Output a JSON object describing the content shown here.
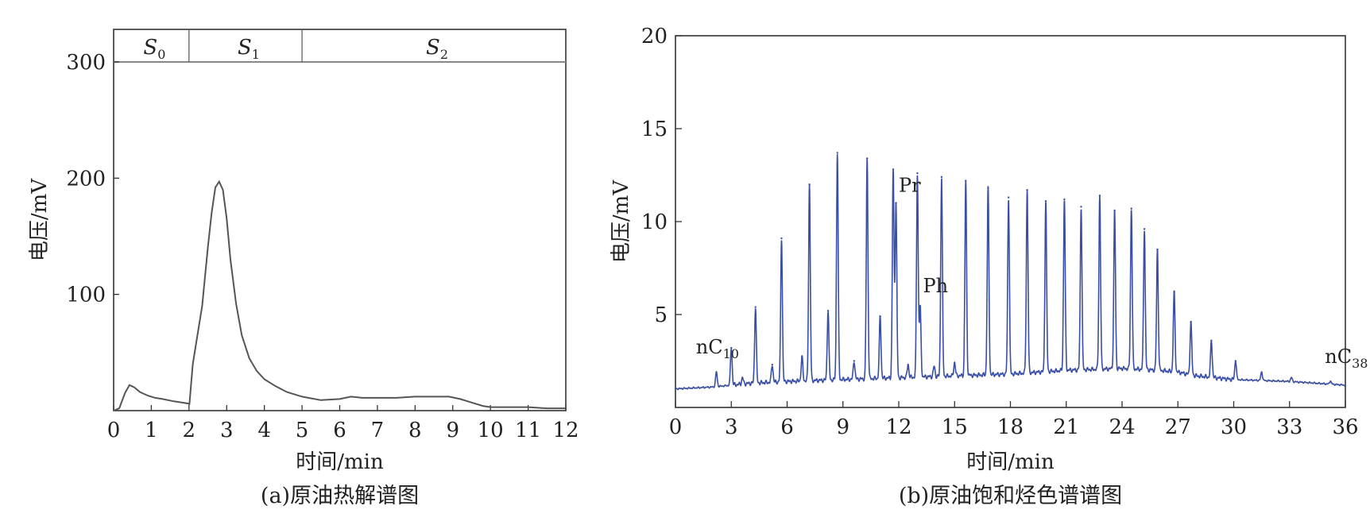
{
  "chart_data": [
    {
      "type": "line",
      "caption": "(a)原油热解谱图",
      "xlabel": "时间/min",
      "ylabel": "电压/mV",
      "xlim": [
        0,
        12
      ],
      "ylim": [
        0,
        328
      ],
      "xticks": [
        0,
        1,
        2,
        3,
        4,
        5,
        6,
        7,
        8,
        9,
        10,
        11,
        12
      ],
      "yticks": [
        100,
        200,
        300
      ],
      "regions": [
        {
          "label": "S",
          "sub": "0",
          "from": 0,
          "to": 2
        },
        {
          "label": "S",
          "sub": "1",
          "from": 2,
          "to": 5
        },
        {
          "label": "S",
          "sub": "2",
          "from": 5,
          "to": 12
        }
      ],
      "region_band": [
        300,
        328
      ],
      "series": [
        {
          "color": "#555555",
          "x": [
            0,
            0.15,
            0.3,
            0.42,
            0.55,
            0.7,
            0.9,
            1.1,
            1.3,
            1.6,
            2.0,
            2.01,
            2.1,
            2.2,
            2.35,
            2.5,
            2.6,
            2.7,
            2.8,
            2.9,
            3.0,
            3.1,
            3.25,
            3.4,
            3.6,
            3.8,
            4.0,
            4.3,
            4.6,
            5.0,
            5.5,
            6.0,
            6.3,
            6.6,
            7.0,
            7.5,
            8.0,
            8.5,
            8.9,
            9.2,
            9.5,
            9.8,
            10.0,
            10.5,
            11.0,
            11.5,
            12.0
          ],
          "y": [
            0,
            2,
            15,
            22,
            20,
            16,
            13,
            11,
            10,
            8,
            6,
            5,
            40,
            60,
            90,
            140,
            170,
            192,
            197,
            190,
            165,
            130,
            92,
            65,
            45,
            34,
            27,
            21,
            16,
            12,
            9,
            10,
            12,
            11,
            11,
            11,
            12,
            12,
            12,
            10,
            7,
            4,
            3,
            3,
            3,
            2,
            2
          ]
        }
      ]
    },
    {
      "type": "line",
      "caption": "(b)原油饱和烃色谱谱图",
      "xlabel": "时间/min",
      "ylabel": "电压/mV",
      "xlim": [
        0,
        36
      ],
      "ylim": [
        0,
        20
      ],
      "xticks": [
        0,
        3,
        6,
        9,
        12,
        15,
        18,
        21,
        24,
        27,
        30,
        33,
        36
      ],
      "yticks": [
        5,
        10,
        15,
        20
      ],
      "baseline": [
        [
          0,
          1.0
        ],
        [
          2,
          1.1
        ],
        [
          4,
          1.3
        ],
        [
          6,
          1.4
        ],
        [
          9,
          1.5
        ],
        [
          12,
          1.6
        ],
        [
          15,
          1.7
        ],
        [
          18,
          1.8
        ],
        [
          21,
          2.0
        ],
        [
          24,
          2.1
        ],
        [
          26,
          2.0
        ],
        [
          27,
          1.9
        ],
        [
          28,
          1.7
        ],
        [
          30,
          1.5
        ],
        [
          33,
          1.4
        ],
        [
          36,
          1.2
        ]
      ],
      "peaks": [
        {
          "x": 2.2,
          "y": 1.9
        },
        {
          "x": 3.0,
          "y": 3.2
        },
        {
          "x": 3.6,
          "y": 1.6
        },
        {
          "x": 4.3,
          "y": 5.4
        },
        {
          "x": 5.2,
          "y": 2.3
        },
        {
          "x": 5.7,
          "y": 9.1
        },
        {
          "x": 6.8,
          "y": 2.7
        },
        {
          "x": 7.2,
          "y": 12.0
        },
        {
          "x": 8.2,
          "y": 5.2
        },
        {
          "x": 8.7,
          "y": 13.7
        },
        {
          "x": 9.6,
          "y": 2.5
        },
        {
          "x": 10.3,
          "y": 13.4
        },
        {
          "x": 11.0,
          "y": 4.9
        },
        {
          "x": 11.7,
          "y": 12.8
        },
        {
          "x": 11.85,
          "y": 11.0
        },
        {
          "x": 12.5,
          "y": 2.3
        },
        {
          "x": 13.0,
          "y": 12.6
        },
        {
          "x": 13.15,
          "y": 5.4
        },
        {
          "x": 13.9,
          "y": 2.2
        },
        {
          "x": 14.3,
          "y": 12.4
        },
        {
          "x": 15.0,
          "y": 2.4
        },
        {
          "x": 15.6,
          "y": 12.2
        },
        {
          "x": 16.8,
          "y": 11.8
        },
        {
          "x": 17.9,
          "y": 11.3
        },
        {
          "x": 18.9,
          "y": 11.7
        },
        {
          "x": 19.9,
          "y": 11.1
        },
        {
          "x": 20.9,
          "y": 11.2
        },
        {
          "x": 21.8,
          "y": 10.8
        },
        {
          "x": 22.8,
          "y": 11.4
        },
        {
          "x": 23.6,
          "y": 10.6
        },
        {
          "x": 24.5,
          "y": 10.7
        },
        {
          "x": 25.2,
          "y": 9.6
        },
        {
          "x": 25.9,
          "y": 8.5
        },
        {
          "x": 26.8,
          "y": 6.2
        },
        {
          "x": 27.7,
          "y": 4.6
        },
        {
          "x": 28.8,
          "y": 3.6
        },
        {
          "x": 30.1,
          "y": 2.5
        },
        {
          "x": 31.5,
          "y": 1.9
        },
        {
          "x": 33.1,
          "y": 1.6
        },
        {
          "x": 35.2,
          "y": 1.4
        }
      ],
      "series": [
        {
          "color": "#3a4fa3"
        }
      ],
      "annotations": [
        {
          "text": "nC",
          "sub": "10",
          "x": 1.1,
          "y": 2.9
        },
        {
          "text": "Pr",
          "x": 12.0,
          "y": 11.6
        },
        {
          "text": "Ph",
          "x": 13.3,
          "y": 6.2
        },
        {
          "text": "nC",
          "sub": "38",
          "x": 34.9,
          "y": 2.4
        }
      ]
    }
  ]
}
